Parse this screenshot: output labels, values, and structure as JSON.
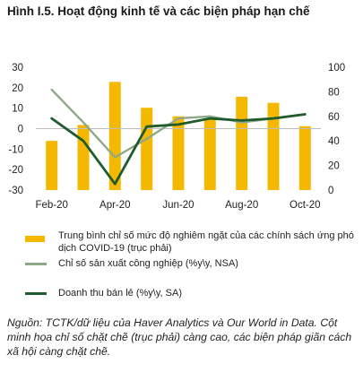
{
  "title": "Hình I.5. Hoạt động kinh tế và các biện pháp hạn chế",
  "chart_data": {
    "type": "bar+line",
    "x": [
      "Feb-20",
      "Mar-20",
      "Apr-20",
      "May-20",
      "Jun-20",
      "Jul-20",
      "Aug-20",
      "Sep-20",
      "Oct-20"
    ],
    "x_tick_labels": [
      "Feb-20",
      "Apr-20",
      "Jun-20",
      "Aug-20",
      "Oct-20"
    ],
    "left_axis": {
      "ylim": [
        -30,
        30
      ],
      "ticks": [
        "30",
        "20",
        "10",
        "0",
        "-10",
        "-20",
        "-30"
      ]
    },
    "right_axis": {
      "ylim": [
        0,
        100
      ],
      "ticks": [
        "100",
        "80",
        "60",
        "40",
        "20",
        "0"
      ]
    },
    "series": [
      {
        "name": "Trung bình chỉ số mức độ nghiêm ngặt của các chính sách ứng phó dịch COVID-19 (trục phải)",
        "type": "bar",
        "axis": "right",
        "color": "#F5B800",
        "values": [
          40,
          53,
          88,
          67,
          60,
          58,
          76,
          71,
          52
        ]
      },
      {
        "name": "Chỉ số sản xuất công nghiệp (%y\\y, NSA)",
        "type": "line",
        "axis": "left",
        "color": "#8FA88A",
        "values": [
          19,
          3,
          -14,
          -5,
          5,
          6,
          3,
          5,
          7
        ]
      },
      {
        "name": "Doanh thu bán lẻ (%y\\y, SA)",
        "type": "line",
        "axis": "left",
        "color": "#1F5B2B",
        "values": [
          5,
          -6,
          -27,
          1,
          2,
          5,
          4,
          5,
          7
        ]
      }
    ]
  },
  "note": "Nguồn: TCTK/dữ liệu của Haver Analytics và Our World in Data. Cột minh họa chỉ số chặt chẽ (trục phải) càng cao, các biện pháp giãn cách xã hội càng chặt chẽ."
}
